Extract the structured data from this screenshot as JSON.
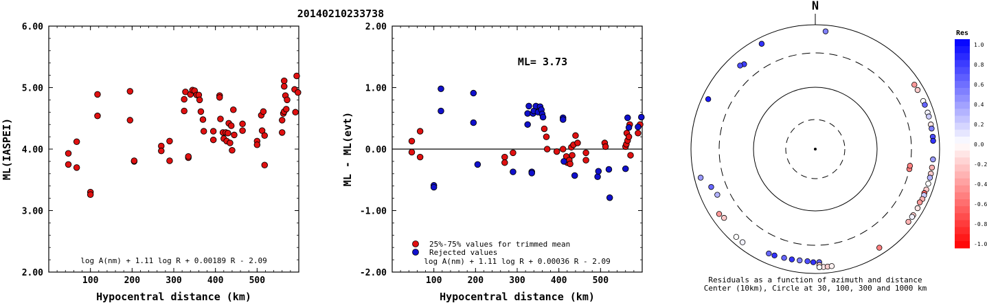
{
  "figure_title": "20140210233738",
  "north_label": "N",
  "colors": {
    "red": "#e01010",
    "blue": "#1010cc",
    "black": "#000000"
  },
  "chart_data": [
    {
      "type": "scatter",
      "xlabel": "Hypocentral distance (km)",
      "ylabel": "ML(IASPEI)",
      "xlim": [
        0,
        600
      ],
      "ylim": [
        2.0,
        6.0
      ],
      "x_ticks": [
        "100",
        "200",
        "300",
        "400",
        "500"
      ],
      "y_ticks": [
        "2.00",
        "3.00",
        "4.00",
        "5.00",
        "6.00"
      ],
      "formula": "log A(nm) + 1.11 log R + 0.00189 R - 2.09",
      "points": [
        [
          47,
          3.93
        ],
        [
          47,
          3.75
        ],
        [
          67,
          4.12
        ],
        [
          67,
          3.7
        ],
        [
          100,
          3.3
        ],
        [
          100,
          3.26
        ],
        [
          117,
          4.89
        ],
        [
          117,
          4.54
        ],
        [
          195,
          4.94
        ],
        [
          195,
          4.47
        ],
        [
          205,
          3.8
        ],
        [
          205,
          3.81
        ],
        [
          270,
          4.05
        ],
        [
          270,
          3.97
        ],
        [
          290,
          4.13
        ],
        [
          290,
          3.81
        ],
        [
          325,
          4.81
        ],
        [
          325,
          4.62
        ],
        [
          328,
          4.93
        ],
        [
          335,
          3.86
        ],
        [
          335,
          3.88
        ],
        [
          340,
          4.89
        ],
        [
          345,
          4.96
        ],
        [
          350,
          4.95
        ],
        [
          355,
          4.88
        ],
        [
          360,
          4.88
        ],
        [
          362,
          4.8
        ],
        [
          365,
          4.61
        ],
        [
          370,
          4.48
        ],
        [
          372,
          4.29
        ],
        [
          395,
          4.29
        ],
        [
          395,
          4.15
        ],
        [
          410,
          4.87
        ],
        [
          410,
          4.84
        ],
        [
          412,
          4.49
        ],
        [
          418,
          4.27
        ],
        [
          420,
          4.17
        ],
        [
          425,
          4.27
        ],
        [
          427,
          4.13
        ],
        [
          430,
          4.26
        ],
        [
          432,
          4.42
        ],
        [
          435,
          4.1
        ],
        [
          438,
          4.38
        ],
        [
          440,
          3.98
        ],
        [
          443,
          4.64
        ],
        [
          445,
          4.23
        ],
        [
          465,
          4.41
        ],
        [
          465,
          4.3
        ],
        [
          500,
          4.13
        ],
        [
          500,
          4.07
        ],
        [
          510,
          4.55
        ],
        [
          512,
          4.3
        ],
        [
          515,
          4.61
        ],
        [
          518,
          4.22
        ],
        [
          518,
          3.74
        ],
        [
          560,
          4.27
        ],
        [
          560,
          4.47
        ],
        [
          563,
          4.58
        ],
        [
          565,
          4.61
        ],
        [
          565,
          5.11
        ],
        [
          565,
          5.02
        ],
        [
          568,
          4.87
        ],
        [
          570,
          4.65
        ],
        [
          572,
          4.8
        ],
        [
          590,
          4.97
        ],
        [
          592,
          4.6
        ],
        [
          595,
          5.19
        ],
        [
          598,
          4.92
        ]
      ]
    },
    {
      "type": "scatter",
      "xlabel": "Hypocentral distance (km)",
      "ylabel": "ML - ML(evt)",
      "xlim": [
        0,
        600
      ],
      "ylim": [
        -2.0,
        2.0
      ],
      "x_ticks": [
        "100",
        "200",
        "300",
        "400",
        "500"
      ],
      "y_ticks": [
        "-2.00",
        "-1.00",
        "0.00",
        "1.00",
        "2.00"
      ],
      "annotation": "ML= 3.73",
      "formula": "log A(nm) + 1.11 log R + 0.00036 R - 2.09",
      "legend": [
        "25%-75% values for trimmed mean",
        "Rejected values"
      ],
      "series": [
        {
          "name": "25%-75% values for trimmed mean",
          "color": "red",
          "points": [
            [
              47,
              0.13
            ],
            [
              47,
              -0.05
            ],
            [
              67,
              0.29
            ],
            [
              67,
              -0.13
            ],
            [
              270,
              -0.13
            ],
            [
              270,
              -0.22
            ],
            [
              290,
              -0.06
            ],
            [
              365,
              0.33
            ],
            [
              370,
              0.2
            ],
            [
              372,
              0.0
            ],
            [
              395,
              -0.04
            ],
            [
              410,
              0.0
            ],
            [
              418,
              -0.12
            ],
            [
              420,
              -0.22
            ],
            [
              425,
              -0.18
            ],
            [
              427,
              -0.24
            ],
            [
              430,
              0.03
            ],
            [
              432,
              -0.1
            ],
            [
              435,
              0.07
            ],
            [
              440,
              0.22
            ],
            [
              445,
              0.1
            ],
            [
              465,
              -0.18
            ],
            [
              465,
              -0.06
            ],
            [
              510,
              0.1
            ],
            [
              512,
              0.04
            ],
            [
              560,
              0.04
            ],
            [
              562,
              0.08
            ],
            [
              563,
              0.26
            ],
            [
              565,
              0.14
            ],
            [
              568,
              0.2
            ],
            [
              570,
              0.4
            ],
            [
              572,
              -0.1
            ],
            [
              590,
              0.26
            ],
            [
              595,
              0.4
            ]
          ]
        },
        {
          "name": "Rejected values",
          "color": "blue",
          "points": [
            [
              100,
              -0.59
            ],
            [
              100,
              -0.62
            ],
            [
              117,
              0.98
            ],
            [
              117,
              0.62
            ],
            [
              195,
              0.91
            ],
            [
              195,
              0.43
            ],
            [
              205,
              -0.25
            ],
            [
              290,
              -0.37
            ],
            [
              325,
              0.58
            ],
            [
              325,
              0.4
            ],
            [
              328,
              0.7
            ],
            [
              335,
              -0.37
            ],
            [
              335,
              -0.39
            ],
            [
              338,
              0.58
            ],
            [
              340,
              0.62
            ],
            [
              345,
              0.7
            ],
            [
              350,
              0.6
            ],
            [
              355,
              0.69
            ],
            [
              358,
              0.64
            ],
            [
              360,
              0.57
            ],
            [
              362,
              0.52
            ],
            [
              410,
              0.51
            ],
            [
              410,
              0.48
            ],
            [
              412,
              -0.2
            ],
            [
              438,
              -0.43
            ],
            [
              493,
              -0.45
            ],
            [
              495,
              -0.36
            ],
            [
              520,
              -0.33
            ],
            [
              522,
              -0.79
            ],
            [
              560,
              -0.32
            ],
            [
              565,
              0.51
            ],
            [
              568,
              0.35
            ],
            [
              590,
              0.36
            ],
            [
              598,
              0.52
            ]
          ]
        }
      ]
    },
    {
      "type": "scatter",
      "chart_kind": "polar residual map",
      "caption_lines": [
        "Residuals as a function of azimuth and distance",
        "Center (10km), Circle at 30, 100, 300 and 1000 km"
      ],
      "colorbar": {
        "title": "Res",
        "labels": [
          "1.0",
          "0.8",
          "0.6",
          "0.4",
          "0.2",
          "0.0",
          "-0.2",
          "-0.4",
          "-0.6",
          "-0.8",
          "-1.0"
        ]
      },
      "points": [
        {
          "azimuth": 102,
          "distance_km": 300,
          "residual": -0.5
        },
        {
          "azimuth": 100,
          "distance_km": 300,
          "residual": -0.5
        },
        {
          "azimuth": 5,
          "distance_km": 1000,
          "residual": 0.5
        },
        {
          "azimuth": 333,
          "distance_km": 1000,
          "residual": 0.8
        },
        {
          "azimuth": 320,
          "distance_km": 560,
          "residual": 0.75
        },
        {
          "azimuth": 318,
          "distance_km": 600,
          "residual": 0.7
        },
        {
          "azimuth": 295,
          "distance_km": 900,
          "residual": 0.9
        },
        {
          "azimuth": 256,
          "distance_km": 1000,
          "residual": 0.4
        },
        {
          "azimuth": 250,
          "distance_km": 560,
          "residual": 0.6
        },
        {
          "azimuth": 245,
          "distance_km": 500,
          "residual": 0.3
        },
        {
          "azimuth": 236,
          "distance_km": 700,
          "residual": -0.4
        },
        {
          "azimuth": 233,
          "distance_km": 650,
          "residual": -0.2
        },
        {
          "azimuth": 222,
          "distance_km": 1000,
          "residual": 0.0
        },
        {
          "azimuth": 218,
          "distance_km": 900,
          "residual": 0.05
        },
        {
          "azimuth": 204,
          "distance_km": 650,
          "residual": 0.6
        },
        {
          "azimuth": 201,
          "distance_km": 640,
          "residual": 0.8
        },
        {
          "azimuth": 196,
          "distance_km": 620,
          "residual": 0.6
        },
        {
          "azimuth": 192,
          "distance_km": 610,
          "residual": 0.8
        },
        {
          "azimuth": 188,
          "distance_km": 600,
          "residual": 0.5
        },
        {
          "azimuth": 184,
          "distance_km": 600,
          "residual": 0.7
        },
        {
          "azimuth": 181,
          "distance_km": 620,
          "residual": 0.8
        },
        {
          "azimuth": 178,
          "distance_km": 620,
          "residual": 0.6
        },
        {
          "azimuth": 178,
          "distance_km": 700,
          "residual": -0.2
        },
        {
          "azimuth": 176,
          "distance_km": 780,
          "residual": -0.1
        },
        {
          "azimuth": 178,
          "distance_km": 850,
          "residual": 0.0
        },
        {
          "azimuth": 174,
          "distance_km": 780,
          "residual": -0.2
        },
        {
          "azimuth": 172,
          "distance_km": 860,
          "residual": -0.05
        },
        {
          "azimuth": 147,
          "distance_km": 750,
          "residual": -0.5
        },
        {
          "azimuth": 57,
          "distance_km": 1000,
          "residual": -0.4
        },
        {
          "azimuth": 60,
          "distance_km": 950,
          "residual": -0.2
        },
        {
          "azimuth": 66,
          "distance_km": 800,
          "residual": 0.0
        },
        {
          "azimuth": 68,
          "distance_km": 900,
          "residual": 0.6
        },
        {
          "azimuth": 72,
          "distance_km": 820,
          "residual": 0.05
        },
        {
          "azimuth": 74,
          "distance_km": 900,
          "residual": 0.2
        },
        {
          "azimuth": 78,
          "distance_km": 820,
          "residual": -0.1
        },
        {
          "azimuth": 80,
          "distance_km": 950,
          "residual": 0.5
        },
        {
          "azimuth": 84,
          "distance_km": 1000,
          "residual": 0.7
        },
        {
          "azimuth": 86,
          "distance_km": 1000,
          "residual": 0.8
        },
        {
          "azimuth": 95,
          "distance_km": 820,
          "residual": 0.4
        },
        {
          "azimuth": 99,
          "distance_km": 850,
          "residual": -0.3
        },
        {
          "azimuth": 102,
          "distance_km": 800,
          "residual": -0.2
        },
        {
          "azimuth": 104,
          "distance_km": 900,
          "residual": 0.3
        },
        {
          "azimuth": 107,
          "distance_km": 770,
          "residual": 0.0
        },
        {
          "azimuth": 110,
          "distance_km": 840,
          "residual": -0.2
        },
        {
          "azimuth": 112,
          "distance_km": 750,
          "residual": -0.6
        },
        {
          "azimuth": 113,
          "distance_km": 900,
          "residual": 0.2
        },
        {
          "azimuth": 115,
          "distance_km": 800,
          "residual": -0.3
        },
        {
          "azimuth": 117,
          "distance_km": 740,
          "residual": -0.4
        },
        {
          "azimuth": 120,
          "distance_km": 800,
          "residual": -0.1
        },
        {
          "azimuth": 124,
          "distance_km": 800,
          "residual": -0.2
        },
        {
          "azimuth": 128,
          "distance_km": 800,
          "residual": -0.3
        },
        {
          "azimuth": 125,
          "distance_km": 900,
          "residual": 0.05
        }
      ]
    }
  ]
}
